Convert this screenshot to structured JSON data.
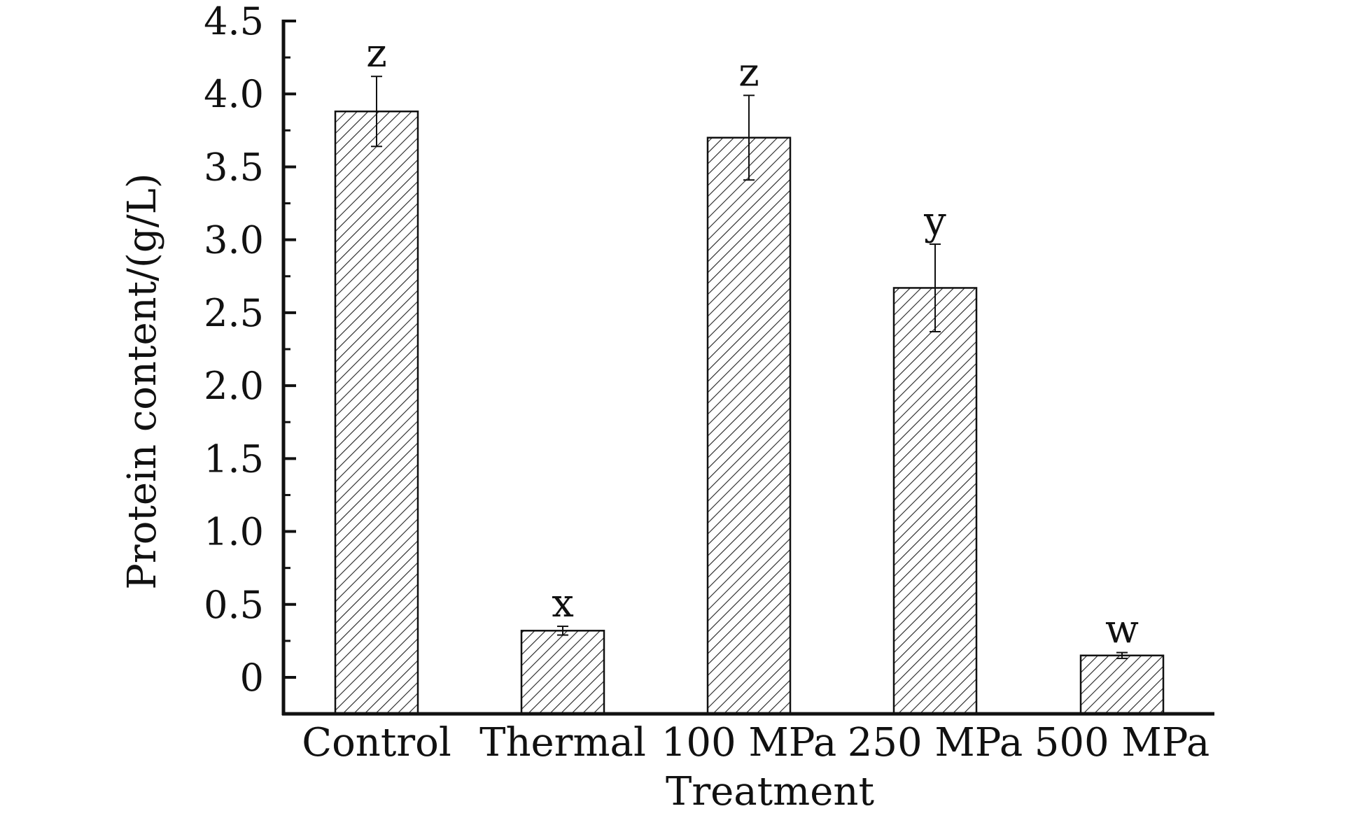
{
  "chart_data": {
    "type": "bar",
    "categories": [
      "Control",
      "Thermal",
      "100 MPa",
      "250 MPa",
      "500 MPa"
    ],
    "values": [
      3.88,
      0.32,
      3.7,
      2.67,
      0.15
    ],
    "errors": [
      0.24,
      0.03,
      0.29,
      0.3,
      0.02
    ],
    "significance": [
      "z",
      "x",
      "z",
      "y",
      "w"
    ],
    "xlabel": "Treatment",
    "ylabel": "Protein content/(g/L)",
    "ylim": [
      -0.25,
      4.5
    ],
    "yticks": [
      0,
      0.5,
      1.0,
      1.5,
      2.0,
      2.5,
      3.0,
      3.5,
      4.0,
      4.5
    ],
    "ytick_labels": [
      "0",
      "0.5",
      "1.0",
      "1.5",
      "2.0",
      "2.5",
      "3.0",
      "3.5",
      "4.0",
      "4.5"
    ],
    "bar_fill": "hatched",
    "grid": false,
    "legend": "none"
  }
}
